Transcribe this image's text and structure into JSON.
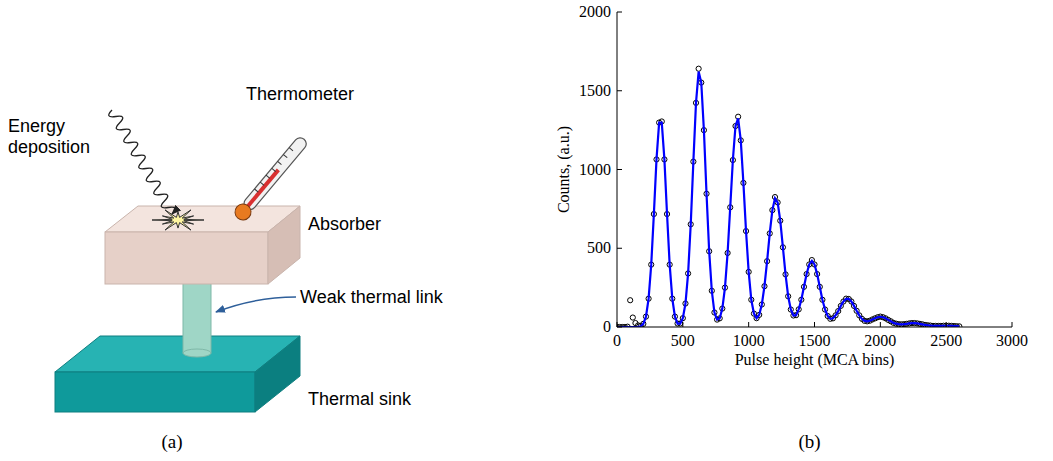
{
  "diagram": {
    "panel_label": "(a)",
    "labels": {
      "energy": "Energy deposition",
      "thermometer": "Thermometer",
      "absorber": "Absorber",
      "link": "Weak thermal link",
      "sink": "Thermal sink"
    }
  },
  "chart_data": {
    "type": "scatter",
    "panel_label": "(b)",
    "x_label": "Pulse height (MCA bins)",
    "y_label": "Counts, (a.u.)",
    "xlim": [
      0,
      3000
    ],
    "xticks": [
      0,
      500,
      1000,
      1500,
      2000,
      2500,
      3000
    ],
    "ylim": [
      0,
      2000
    ],
    "yticks": [
      0,
      500,
      1000,
      1500,
      2000
    ],
    "grid": false,
    "x": [
      0,
      20,
      40,
      60,
      80,
      100,
      120,
      140,
      160,
      180,
      200,
      220,
      240,
      260,
      280,
      300,
      320,
      340,
      360,
      380,
      400,
      420,
      440,
      460,
      480,
      500,
      520,
      540,
      560,
      580,
      600,
      620,
      640,
      660,
      680,
      700,
      720,
      740,
      760,
      780,
      800,
      820,
      840,
      860,
      880,
      900,
      920,
      940,
      960,
      980,
      1000,
      1020,
      1040,
      1060,
      1080,
      1100,
      1120,
      1140,
      1160,
      1180,
      1200,
      1220,
      1240,
      1260,
      1280,
      1300,
      1320,
      1340,
      1360,
      1380,
      1400,
      1420,
      1440,
      1460,
      1480,
      1500,
      1520,
      1540,
      1560,
      1580,
      1600,
      1620,
      1640,
      1660,
      1680,
      1700,
      1720,
      1740,
      1760,
      1780,
      1800,
      1820,
      1840,
      1860,
      1880,
      1900,
      1920,
      1940,
      1960,
      1980,
      2000,
      2020,
      2040,
      2060,
      2080,
      2100,
      2120,
      2140,
      2160,
      2180,
      2200,
      2220,
      2240,
      2260,
      2280,
      2300,
      2320,
      2340,
      2360,
      2380,
      2400,
      2420,
      2440,
      2460,
      2480,
      2500,
      2520,
      2540,
      2560,
      2580,
      2600
    ],
    "series": [
      {
        "type": "scatter",
        "marker": "circle",
        "color": "#000000",
        "values": [
          0,
          0,
          0,
          0,
          2,
          170,
          60,
          25,
          10,
          6,
          20,
          66,
          180,
          396,
          717,
          1064,
          1298,
          1305,
          1064,
          717,
          396,
          180,
          66,
          22,
          22,
          56,
          149,
          340,
          652,
          1050,
          1423,
          1640,
          1552,
          1250,
          846,
          481,
          230,
          92,
          47,
          55,
          117,
          250,
          470,
          760,
          1060,
          1276,
          1335,
          1185,
          915,
          609,
          350,
          173,
          85,
          56,
          77,
          143,
          259,
          418,
          594,
          742,
          825,
          791,
          675,
          506,
          334,
          195,
          111,
          73,
          75,
          112,
          173,
          255,
          336,
          397,
          425,
          397,
          336,
          255,
          173,
          111,
          70,
          52,
          55,
          74,
          101,
          134,
          162,
          180,
          178,
          162,
          134,
          103,
          74,
          52,
          39,
          36,
          40,
          48,
          55,
          62,
          66,
          62,
          55,
          45,
          36,
          26,
          21,
          18,
          17,
          18,
          20,
          23,
          25,
          25,
          23,
          20,
          17,
          13,
          11,
          9,
          7,
          7,
          7,
          7,
          8,
          8,
          8,
          7,
          6,
          5,
          4
        ]
      },
      {
        "type": "line",
        "line_style": "solid",
        "color": "#0000ff",
        "values": [
          0,
          0,
          0,
          0,
          0,
          0,
          0,
          0,
          1,
          5,
          20,
          66,
          180,
          396,
          717,
          1064,
          1298,
          1298,
          1064,
          717,
          396,
          180,
          66,
          22,
          22,
          56,
          149,
          340,
          652,
          1050,
          1423,
          1622,
          1552,
          1250,
          846,
          481,
          230,
          92,
          47,
          55,
          117,
          250,
          470,
          760,
          1060,
          1276,
          1324,
          1185,
          915,
          609,
          350,
          173,
          85,
          56,
          77,
          143,
          259,
          418,
          594,
          742,
          817,
          791,
          675,
          506,
          334,
          195,
          111,
          73,
          75,
          112,
          173,
          255,
          336,
          397,
          420,
          397,
          336,
          255,
          173,
          111,
          70,
          52,
          55,
          74,
          101,
          134,
          162,
          178,
          178,
          162,
          134,
          103,
          74,
          52,
          39,
          36,
          40,
          48,
          55,
          62,
          65,
          62,
          55,
          45,
          36,
          26,
          21,
          18,
          17,
          18,
          20,
          23,
          25,
          25,
          23,
          20,
          17,
          13,
          11,
          9,
          7,
          7,
          7,
          7,
          8,
          8,
          8,
          7,
          6,
          5,
          4
        ]
      }
    ]
  }
}
